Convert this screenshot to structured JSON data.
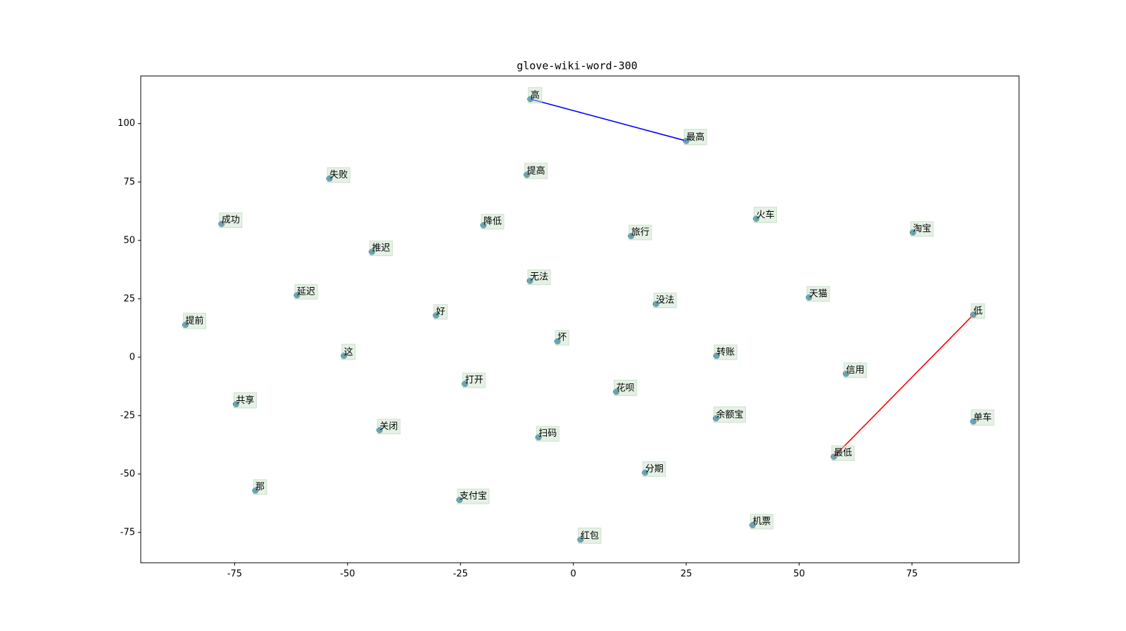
{
  "chart_data": {
    "type": "scatter",
    "title": "glove-wiki-word-300",
    "labels": [
      "高",
      "最高",
      "提高",
      "失败",
      "成功",
      "降低",
      "旅行",
      "火车",
      "淘宝",
      "推迟",
      "无法",
      "延迟",
      "天猫",
      "没法",
      "低",
      "提前",
      "好",
      "坏",
      "这",
      "转账",
      "信用",
      "打开",
      "花呗",
      "共享",
      "余额宝",
      "单车",
      "关闭",
      "扫码",
      "最低",
      "分期",
      "那",
      "支付宝",
      "机票",
      "红包"
    ],
    "x": [
      -9.5,
      25,
      -10.3,
      -54,
      -77.9,
      -19.9,
      12.8,
      40.5,
      75.2,
      -44.6,
      -9.6,
      -61.2,
      52.2,
      18.3,
      88.6,
      -85.9,
      -30.4,
      -3.5,
      -50.8,
      31.7,
      60.4,
      -24,
      9.5,
      -74.7,
      31.6,
      88.6,
      -42.9,
      -7.7,
      57.7,
      15.9,
      -70.4,
      -25.2,
      39.7,
      1.6
    ],
    "y": [
      110.5,
      92.6,
      78.1,
      76.5,
      57.1,
      56.5,
      51.9,
      59.3,
      53.4,
      45.1,
      32.7,
      26.5,
      25.6,
      22.8,
      18.2,
      13.9,
      17.9,
      6.8,
      0.6,
      0.6,
      -7.1,
      -11.4,
      -14.8,
      -20.1,
      -26.2,
      -27.5,
      -31.2,
      -34.3,
      -42.6,
      -49.4,
      -57.1,
      -61.1,
      -71.9,
      -78.1
    ],
    "color": "#1f6f9a",
    "links": [
      {
        "from": 0,
        "to": 1,
        "color": "blue"
      },
      {
        "from": 28,
        "to": 14,
        "color": "red"
      }
    ],
    "xlim": [
      -95.8,
      98.7
    ],
    "ylim": [
      -88,
      120.4
    ],
    "xticks": [
      -75,
      -50,
      -25,
      0,
      25,
      50,
      75
    ],
    "yticks": [
      -75,
      -50,
      -25,
      0,
      25,
      50,
      75,
      100
    ]
  }
}
